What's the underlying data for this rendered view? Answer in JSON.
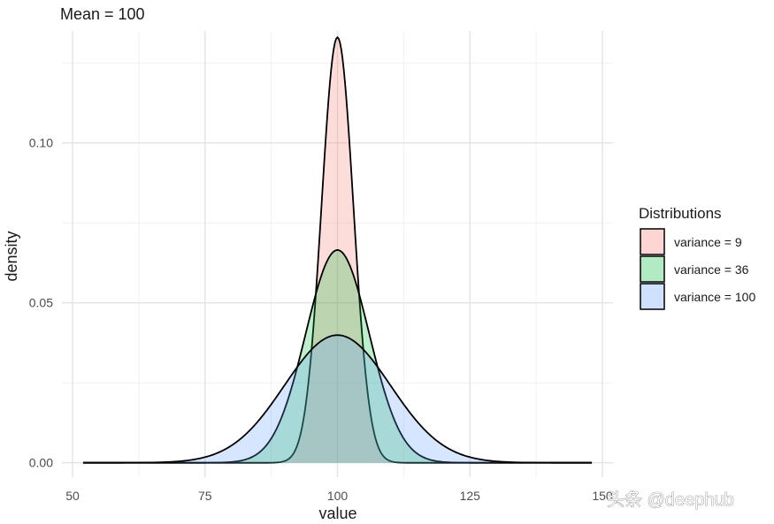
{
  "chart_data": {
    "type": "area",
    "title": "Mean = 100",
    "xlabel": "value",
    "ylabel": "density",
    "xlim": [
      48,
      152
    ],
    "ylim": [
      -0.0045,
      0.135
    ],
    "x_ticks": [
      50,
      75,
      100,
      125,
      150
    ],
    "x_tick_labels": [
      "50",
      "75",
      "100",
      "125",
      "150"
    ],
    "y_ticks": [
      0.0,
      0.05,
      0.1
    ],
    "y_tick_labels": [
      "0.00",
      "0.05",
      "0.10"
    ],
    "grid": true,
    "legend": {
      "title": "Distributions",
      "position": "right"
    },
    "mean": 100,
    "x_range": [
      52,
      148
    ],
    "series": [
      {
        "name": "variance = 9",
        "variance": 9,
        "peak": 0.133,
        "fill": "#f8766d"
      },
      {
        "name": "variance = 36",
        "variance": 36,
        "peak": 0.0665,
        "fill": "#00ba38"
      },
      {
        "name": "variance = 100",
        "variance": 100,
        "peak": 0.0399,
        "fill": "#619cff"
      }
    ]
  },
  "watermark": "头条 @deephub"
}
